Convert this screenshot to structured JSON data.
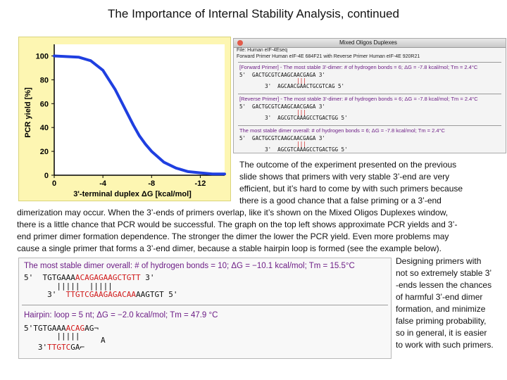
{
  "title": "The Importance of Internal Stability Analysis, continued",
  "chart_data": {
    "type": "line",
    "title": "",
    "xlabel": "3'-terminal duplex ΔG [kcal/mol]",
    "ylabel": "PCR yield [%]",
    "x_ticks": [
      "0",
      "-4",
      "-8",
      "-12"
    ],
    "y_ticks": [
      "0",
      "20",
      "40",
      "60",
      "80",
      "100"
    ],
    "xlim": [
      0,
      -14
    ],
    "ylim": [
      0,
      105
    ],
    "grid": false,
    "series": [
      {
        "x": [
          0,
          -2,
          -3,
          -4,
          -5,
          -5.5,
          -6,
          -6.5,
          -7,
          -7.5,
          -8,
          -9,
          -10,
          -11,
          -12,
          -13,
          -14
        ],
        "y": [
          100,
          99,
          96,
          88,
          72,
          62,
          52,
          42,
          33,
          26,
          20,
          11,
          6,
          3,
          2,
          1,
          1
        ]
      }
    ],
    "color": "#1f3fe0"
  },
  "oligo_window": {
    "title": "Mixed Oligos Duplexes",
    "file": "File: Human eIF-4Eseq",
    "primers": "Forward Primer Human eIF-4E 684F21 with Reverse Primer Human eIF-4E 920R21",
    "forward": {
      "head": "[Forward Primer] - The most stable 3'-dimer: # of hydrogen bonds = 6; ΔG = -7.8 kcal/mol; Tm = 2.4°C",
      "line1": "5'  GACTGCGTCAAGCAACGAGA 3'",
      "bars": "                  |||",
      "line2": "        3'  AGCAACGAACTGCGTCAG 5'"
    },
    "reverse": {
      "head": "[Reverse Primer] - The most stable 3'-dimer: # of hydrogen bonds = 6; ΔG = -7.8 kcal/mol; Tm = 2.4°C",
      "line1": "5'  GACTGCGTCAAGCAACGAGA 3'",
      "bars": "                  |||",
      "line2": "        3'  AGCGTCAAAGCCTGACTGG 5'"
    },
    "overall": {
      "head": "The most stable dimer overall: # of hydrogen bonds = 6; ΔG = -7.8 kcal/mol; Tm = 2.4°C",
      "line1": "5'  GACTGCGTCAAGCAACGAGA 3'",
      "bars": "                  |||",
      "line2": "        3'  AGCGTCAAAGCCTGACTGG 5'"
    }
  },
  "paragraph_right": [
    "The outcome of the experiment presented on the previous",
    "slide shows that primers with very stable 3’-end are very",
    "efficient, but it’s hard to come by with such primers because",
    "there is a good chance that a false priming or a 3’-end"
  ],
  "paragraph_full": [
    "dimerization may occur. When the 3’-ends of primers overlap, like it’s shown on the Mixed Oligos Duplexes window,",
    "there is a little chance that PCR would be successful. The graph on the top left shows approximate PCR yields and 3’-",
    "end primer dimer formation dependence. The stronger the dimer the lower the PCR yield. Even more problems may",
    "cause a single primer that forms a 3’-end dimer, because a stable hairpin loop is formed (see the example below)."
  ],
  "paragraph_side": [
    "Designing primers with",
    "not so extremely stable 3’",
    "-ends lessen the chances",
    "of harmful 3’-end dimer",
    "formation, and minimize",
    "false priming probability,",
    "so in general,  it is easier",
    "to work with such primers."
  ],
  "dimer_window": {
    "dimer_head": "The most stable dimer overall: # of hydrogen bonds = 10; ΔG = −10.1 kcal/mol; Tm = 15.5°C",
    "dimer_l1_prefix": "5'  TGTGAAA",
    "dimer_l1_red": "ACAGAGAAGCTGTT",
    "dimer_l1_suffix": " 3'",
    "dimer_bars": "       |||||  |||||",
    "dimer_l2_prefix": "     3'  ",
    "dimer_l2_red": "TTGTCGAAGAGACAA",
    "dimer_l2_suffix": "AAGTGT 5'",
    "hairpin_head": "Hairpin: loop = 5 nt; ΔG = −2.0 kcal/mol; Tm = 47.9 °C",
    "hp_l1_prefix": "5'",
    "hp_l1_a": "TGTGAAA",
    "hp_l1_red": "ACAG",
    "hp_l1_b": "AG",
    "hp_bars": "       |||||",
    "hp_a": "A",
    "hp_l2_prefix": "   3'",
    "hp_l2_red": "TTGTC",
    "hp_l2_b": "GA"
  }
}
